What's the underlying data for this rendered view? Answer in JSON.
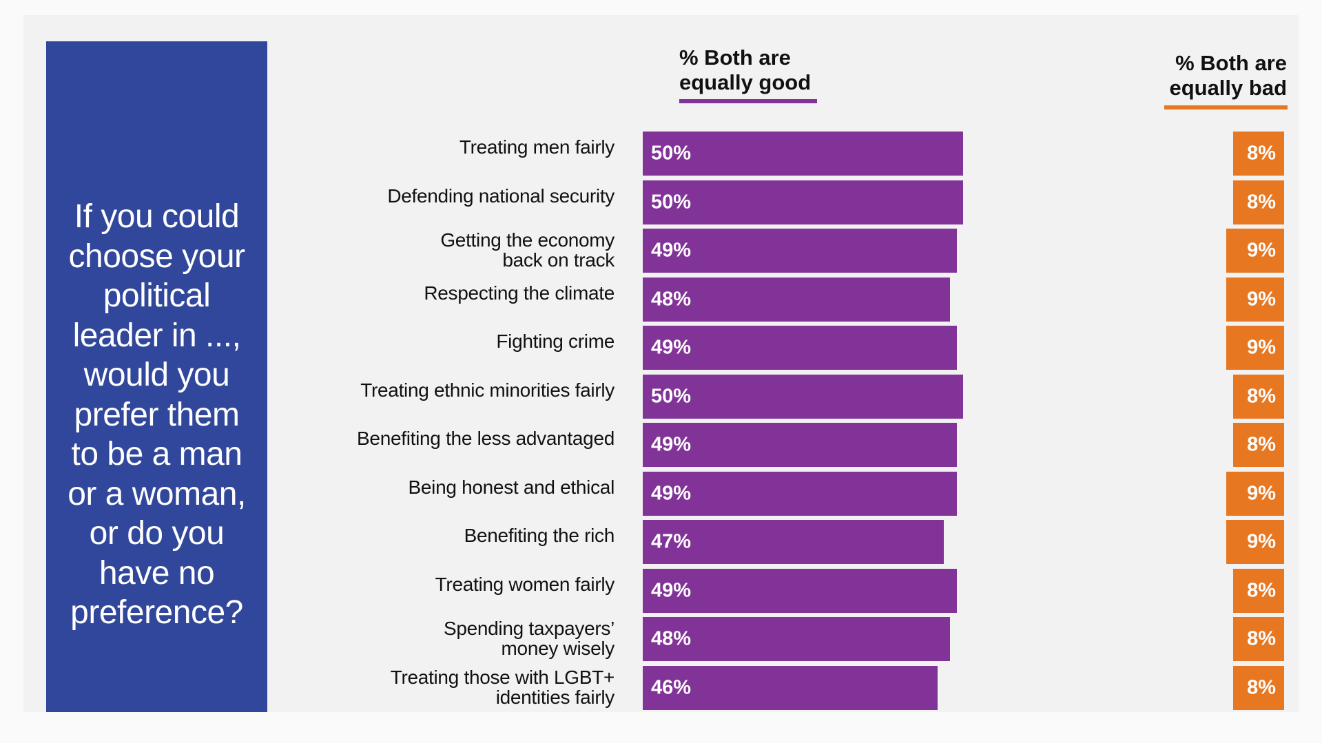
{
  "question": "If you could\nchoose your\npolitical\nleader in ...,\nwould you\nprefer them\nto be a man\nor a woman,\nor do you\nhave no\npreference?",
  "colors": {
    "question_bg": "#31479b",
    "good": "#823398",
    "bad": "#e87722",
    "panel": "#f2f2f2"
  },
  "chart_data": {
    "type": "bar",
    "orientation": "horizontal",
    "categories": [
      "Treating men fairly",
      "Defending national security",
      "Getting the economy\nback on track",
      "Respecting the climate",
      "Fighting crime",
      "Treating ethnic minorities fairly",
      "Benefiting the less advantaged",
      "Being honest and ethical",
      "Benefiting the rich",
      "Treating women fairly",
      "Spending taxpayers’\nmoney wisely",
      "Treating those with LGBT+\nidentities fairly"
    ],
    "series": [
      {
        "name": "% Both are\nequally good",
        "color": "#823398",
        "values": [
          50,
          50,
          49,
          48,
          49,
          50,
          49,
          49,
          47,
          49,
          48,
          46
        ],
        "labels": [
          "50%",
          "50%",
          "49%",
          "48%",
          "49%",
          "50%",
          "49%",
          "49%",
          "47%",
          "49%",
          "48%",
          "46%"
        ]
      },
      {
        "name": "% Both are\nequally bad",
        "color": "#e87722",
        "values": [
          8,
          8,
          9,
          9,
          9,
          8,
          8,
          9,
          9,
          8,
          8,
          8
        ],
        "labels": [
          "8%",
          "8%",
          "9%",
          "9%",
          "9%",
          "8%",
          "8%",
          "9%",
          "9%",
          "8%",
          "8%",
          "8%"
        ]
      }
    ],
    "legend": "column headers above bars",
    "grid": false
  }
}
